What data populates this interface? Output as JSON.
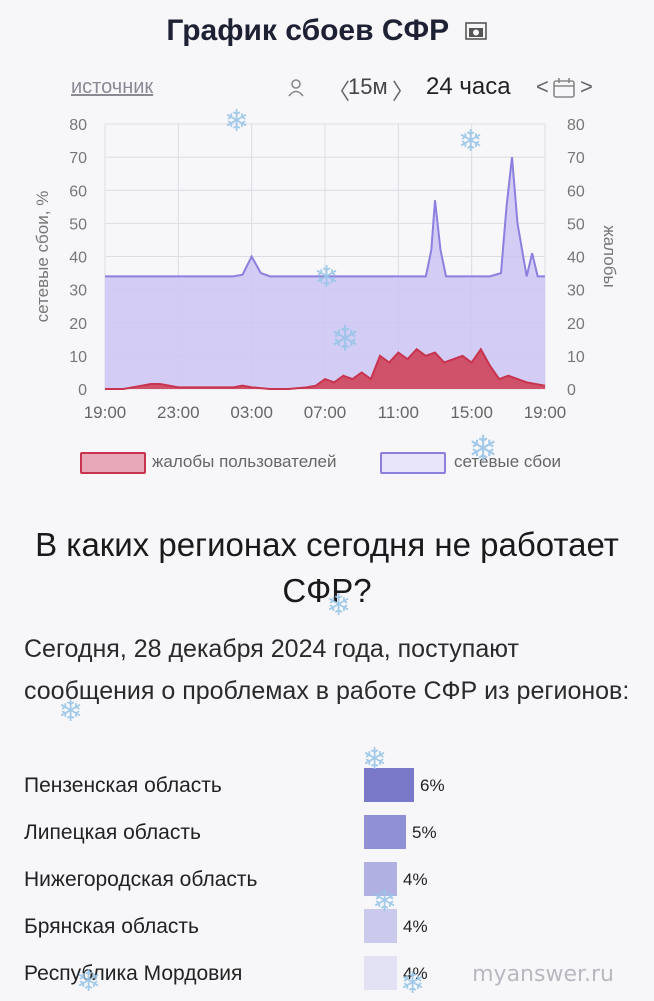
{
  "header": {
    "title": "График сбоев СФР",
    "camera_icon": "camera-icon"
  },
  "controls": {
    "source_link": "источник",
    "user_icon": "user-icon",
    "step_label": "15м",
    "step_prev": "〈",
    "step_next": "〉",
    "period_label": "24 часа",
    "period_prev": "<",
    "period_next": ">",
    "calendar_icon": "calendar-icon"
  },
  "chart_data": {
    "type": "area",
    "title": "",
    "ylabel_left": "сетевые сбои, %",
    "ylabel_right": "жалобы",
    "ylim": [
      0,
      80
    ],
    "yticks": [
      0,
      10,
      20,
      30,
      40,
      50,
      60,
      70,
      80
    ],
    "xlim": [
      0,
      24
    ],
    "xticks": [
      {
        "v": 0,
        "label": "19:00"
      },
      {
        "v": 4,
        "label": "23:00"
      },
      {
        "v": 8,
        "label": "03:00"
      },
      {
        "v": 12,
        "label": "07:00"
      },
      {
        "v": 16,
        "label": "11:00"
      },
      {
        "v": 20,
        "label": "15:00"
      },
      {
        "v": 24,
        "label": "19:00"
      }
    ],
    "grid": true,
    "legend_position": "bottom",
    "series": [
      {
        "name": "сетевые сбои",
        "color": "#8b80de",
        "fill": "#cdc6f4",
        "x": [
          0,
          1,
          2,
          3,
          4,
          5,
          6,
          7,
          7.5,
          8,
          8.5,
          9,
          10,
          11,
          12,
          13,
          14,
          15,
          16,
          17,
          17.5,
          17.8,
          18,
          18.3,
          18.6,
          19,
          20,
          21,
          21.6,
          21.9,
          22.2,
          22.5,
          23,
          23.3,
          23.6,
          24
        ],
        "values": [
          34,
          34,
          34,
          34,
          34,
          34,
          34,
          34,
          34.5,
          40,
          35,
          34,
          34,
          34,
          34,
          34,
          34,
          34,
          34,
          34,
          34,
          42,
          57,
          42,
          34,
          34,
          34,
          34,
          35,
          55,
          70,
          50,
          34,
          41,
          34,
          34
        ]
      },
      {
        "name": "жалобы пользователей",
        "color": "#c8344f",
        "fill": "#d04a62",
        "x": [
          0,
          1,
          1.5,
          2,
          2.5,
          3,
          4,
          5,
          6,
          7,
          7.5,
          8,
          9,
          10,
          11,
          11.5,
          12,
          12.5,
          13,
          13.5,
          14,
          14.5,
          15,
          15.5,
          16,
          16.5,
          17,
          17.5,
          18,
          18.5,
          19,
          19.5,
          20,
          20.5,
          21,
          21.5,
          22,
          22.5,
          23,
          24
        ],
        "values": [
          0,
          0,
          0.5,
          1,
          1.5,
          1.5,
          0.5,
          0.5,
          0.5,
          0.5,
          1,
          0.5,
          0,
          0,
          0.5,
          1,
          3,
          2,
          4,
          3,
          5,
          3,
          10,
          8,
          11,
          9,
          12,
          10,
          11,
          8,
          9,
          10,
          8,
          12,
          7,
          3,
          4,
          3,
          2,
          1
        ]
      }
    ]
  },
  "legend": {
    "complaints": {
      "label": "жалобы пользователей",
      "color": "#e8a8b8",
      "border": "#c8344f"
    },
    "outages": {
      "label": "сетевые сбои",
      "color": "#e8e4fa",
      "border": "#8b80de"
    }
  },
  "section": {
    "heading": "В каких регионах сегодня не работает СФР?",
    "paragraph": "Сегодня, 28 декабря 2024 года, поступают сообщения о проблемах в работе СФР из регионов:"
  },
  "regions": [
    {
      "name": "Пензенская область",
      "pct": "6%",
      "value": 6,
      "color": "#7a78c8"
    },
    {
      "name": "Липецкая область",
      "pct": "5%",
      "value": 5,
      "color": "#9090d6"
    },
    {
      "name": "Нижегородская область",
      "pct": "4%",
      "value": 4,
      "color": "#b0b0e2"
    },
    {
      "name": "Брянская область",
      "pct": "4%",
      "value": 4,
      "color": "#cacaec"
    },
    {
      "name": "Республика Мордовия",
      "pct": "4%",
      "value": 4,
      "color": "#e2e2f4"
    }
  ],
  "watermark": "myanswer.ru"
}
